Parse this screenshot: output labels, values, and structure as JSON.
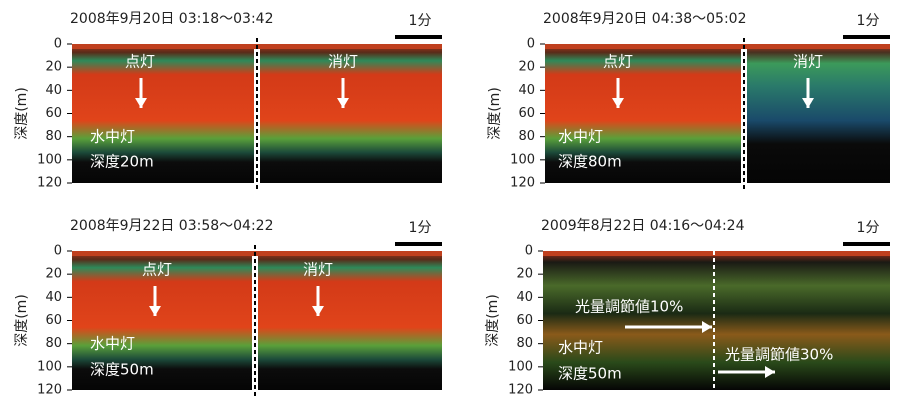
{
  "panels": [
    {
      "title": "2008年9月20日  03:18〜03:42",
      "scale_label": "1分",
      "y_label": "深度(m)",
      "ylim": [
        0,
        120
      ],
      "yticks": [
        0,
        20,
        40,
        60,
        80,
        100,
        120
      ],
      "annotations": [
        "点灯",
        "消灯",
        "水中灯",
        "深度20m"
      ]
    },
    {
      "title": "2008年9月20日  04:38〜05:02",
      "scale_label": "1分",
      "y_label": "深度(m)",
      "ylim": [
        0,
        120
      ],
      "yticks": [
        0,
        20,
        40,
        60,
        80,
        100,
        120
      ],
      "annotations": [
        "点灯",
        "消灯",
        "水中灯",
        "深度80m"
      ]
    },
    {
      "title": "2008年9月22日  03:58〜04:22",
      "scale_label": "1分",
      "y_label": "深度(m)",
      "ylim": [
        0,
        120
      ],
      "yticks": [
        0,
        20,
        40,
        60,
        80,
        100,
        120
      ],
      "annotations": [
        "点灯",
        "消灯",
        "水中灯",
        "深度50m"
      ]
    },
    {
      "title": "2009年8月22日  04:16〜04:24",
      "scale_label": "1分",
      "y_label": "深度(m)",
      "ylim": [
        0,
        120
      ],
      "yticks": [
        0,
        20,
        40,
        60,
        80,
        100,
        120
      ],
      "annotations": [
        "光量調節値10%",
        "光量調節値30%",
        "水中灯",
        "深度50m"
      ]
    }
  ]
}
